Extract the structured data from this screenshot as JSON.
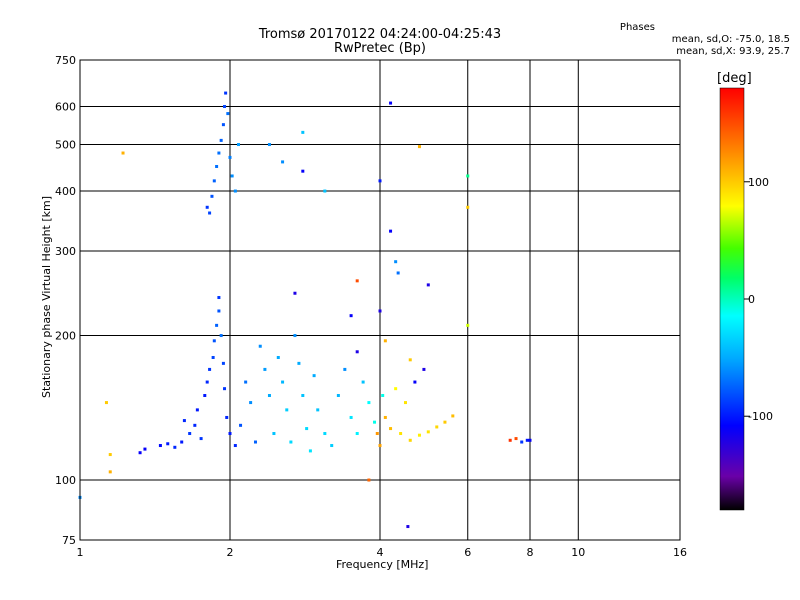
{
  "header": {
    "title": "Tromsø 20170122 04:24:00-04:25:43",
    "subtitle": "RwPretec (Bp)",
    "phase_title": "Phases",
    "phase_o": "mean, sd,O: -75.0, 18.5",
    "phase_x": "mean, sd,X:  93.9, 25.7"
  },
  "colorbar": {
    "label": "[deg]",
    "ticks": [
      {
        "value": 100,
        "label": "100"
      },
      {
        "value": 0,
        "label": "0"
      },
      {
        "value": -100,
        "label": "-100"
      }
    ],
    "range": [
      -180,
      180
    ]
  },
  "chart_data": {
    "type": "scatter",
    "title": "Tromsø 20170122 04:24:00-04:25:43",
    "subtitle": "RwPretec (Bp)",
    "xlabel": "Frequency [MHz]",
    "ylabel": "Stationary phase Virtual Height [km]",
    "xscale": "log",
    "yscale": "log",
    "xlim": [
      1,
      16
    ],
    "ylim": [
      75,
      750
    ],
    "xticks": [
      {
        "value": 1,
        "label": "1"
      },
      {
        "value": 2,
        "label": "2"
      },
      {
        "value": 4,
        "label": "4"
      },
      {
        "value": 6,
        "label": "6"
      },
      {
        "value": 8,
        "label": "8"
      },
      {
        "value": 10,
        "label": "10"
      },
      {
        "value": 16,
        "label": "16"
      }
    ],
    "yticks": [
      {
        "value": 75,
        "label": "75"
      },
      {
        "value": 100,
        "label": "100"
      },
      {
        "value": 200,
        "label": "200"
      },
      {
        "value": 300,
        "label": "300"
      },
      {
        "value": 400,
        "label": "400"
      },
      {
        "value": 500,
        "label": "500"
      },
      {
        "value": 600,
        "label": "600"
      },
      {
        "value": 750,
        "label": "750"
      }
    ],
    "grid": true,
    "color_quantity": "phase [deg]",
    "points": [
      [
        1.0,
        92,
        -60
      ],
      [
        1.15,
        104,
        110
      ],
      [
        1.15,
        113,
        100
      ],
      [
        1.13,
        145,
        100
      ],
      [
        1.22,
        480,
        110
      ],
      [
        1.32,
        114,
        -110
      ],
      [
        1.35,
        116,
        -110
      ],
      [
        1.45,
        118,
        -105
      ],
      [
        1.5,
        119,
        -100
      ],
      [
        1.55,
        117,
        -95
      ],
      [
        1.6,
        120,
        -100
      ],
      [
        1.62,
        133,
        -95
      ],
      [
        1.66,
        125,
        -90
      ],
      [
        1.7,
        130,
        -95
      ],
      [
        1.72,
        140,
        -100
      ],
      [
        1.75,
        122,
        -90
      ],
      [
        1.78,
        150,
        -100
      ],
      [
        1.8,
        160,
        -95
      ],
      [
        1.82,
        170,
        -90
      ],
      [
        1.85,
        180,
        -85
      ],
      [
        1.86,
        195,
        -80
      ],
      [
        1.88,
        210,
        -75
      ],
      [
        1.9,
        225,
        -80
      ],
      [
        1.9,
        240,
        -90
      ],
      [
        1.92,
        200,
        -70
      ],
      [
        1.94,
        175,
        -85
      ],
      [
        1.95,
        155,
        -90
      ],
      [
        1.97,
        135,
        -95
      ],
      [
        2.0,
        125,
        -100
      ],
      [
        2.05,
        118,
        -95
      ],
      [
        2.1,
        130,
        -80
      ],
      [
        2.15,
        160,
        -70
      ],
      [
        2.2,
        145,
        -60
      ],
      [
        2.25,
        120,
        -75
      ],
      [
        2.3,
        190,
        -60
      ],
      [
        2.35,
        170,
        -55
      ],
      [
        2.4,
        150,
        -50
      ],
      [
        2.45,
        125,
        -40
      ],
      [
        2.5,
        180,
        -50
      ],
      [
        2.55,
        160,
        -45
      ],
      [
        2.6,
        140,
        -35
      ],
      [
        2.65,
        120,
        -30
      ],
      [
        2.7,
        200,
        -60
      ],
      [
        2.75,
        175,
        -50
      ],
      [
        2.8,
        150,
        -40
      ],
      [
        2.85,
        128,
        -30
      ],
      [
        2.9,
        115,
        -25
      ],
      [
        2.95,
        165,
        -50
      ],
      [
        3.0,
        140,
        -40
      ],
      [
        3.1,
        125,
        -30
      ],
      [
        3.2,
        118,
        -35
      ],
      [
        3.3,
        150,
        -45
      ],
      [
        3.4,
        170,
        -60
      ],
      [
        3.5,
        135,
        -25
      ],
      [
        3.6,
        125,
        -20
      ],
      [
        3.7,
        160,
        -40
      ],
      [
        3.8,
        145,
        -15
      ],
      [
        3.9,
        132,
        -10
      ],
      [
        3.95,
        125,
        120
      ],
      [
        4.0,
        118,
        115
      ],
      [
        4.05,
        150,
        -10
      ],
      [
        4.1,
        135,
        110
      ],
      [
        4.2,
        128,
        105
      ],
      [
        4.4,
        125,
        90
      ],
      [
        4.6,
        121,
        95
      ],
      [
        4.8,
        124,
        85
      ],
      [
        5.0,
        126,
        90
      ],
      [
        5.2,
        129,
        95
      ],
      [
        5.4,
        132,
        100
      ],
      [
        5.6,
        136,
        105
      ],
      [
        4.3,
        155,
        80
      ],
      [
        4.5,
        145,
        90
      ],
      [
        4.7,
        160,
        -110
      ],
      [
        4.9,
        170,
        -120
      ],
      [
        7.3,
        121,
        160
      ],
      [
        7.5,
        122,
        150
      ],
      [
        7.7,
        120,
        -90
      ],
      [
        7.9,
        121,
        -100
      ],
      [
        8.0,
        121,
        -110
      ],
      [
        1.8,
        370,
        -90
      ],
      [
        1.82,
        360,
        -85
      ],
      [
        1.84,
        390,
        -80
      ],
      [
        1.86,
        420,
        -75
      ],
      [
        1.88,
        450,
        -70
      ],
      [
        1.9,
        480,
        -70
      ],
      [
        1.92,
        510,
        -75
      ],
      [
        1.94,
        550,
        -80
      ],
      [
        1.95,
        600,
        -85
      ],
      [
        1.96,
        640,
        -90
      ],
      [
        1.98,
        580,
        -70
      ],
      [
        2.0,
        470,
        -65
      ],
      [
        2.02,
        430,
        -60
      ],
      [
        2.05,
        400,
        -60
      ],
      [
        2.08,
        500,
        -55
      ],
      [
        2.4,
        500,
        -60
      ],
      [
        2.55,
        460,
        -60
      ],
      [
        2.8,
        530,
        -40
      ],
      [
        2.8,
        440,
        -110
      ],
      [
        3.1,
        400,
        -40
      ],
      [
        4.0,
        420,
        -100
      ],
      [
        4.2,
        610,
        -110
      ],
      [
        4.2,
        330,
        -110
      ],
      [
        4.3,
        285,
        -60
      ],
      [
        4.35,
        270,
        -70
      ],
      [
        4.8,
        495,
        110
      ],
      [
        5.0,
        255,
        -120
      ],
      [
        6.0,
        430,
        10
      ],
      [
        6.0,
        370,
        100
      ],
      [
        6.0,
        210,
        70
      ],
      [
        3.6,
        260,
        150
      ],
      [
        2.7,
        245,
        -120
      ],
      [
        3.5,
        220,
        -110
      ],
      [
        4.0,
        225,
        -120
      ],
      [
        3.8,
        100,
        140
      ],
      [
        4.55,
        80,
        -120
      ],
      [
        3.6,
        185,
        -120
      ],
      [
        4.1,
        195,
        110
      ],
      [
        4.6,
        178,
        100
      ]
    ]
  }
}
